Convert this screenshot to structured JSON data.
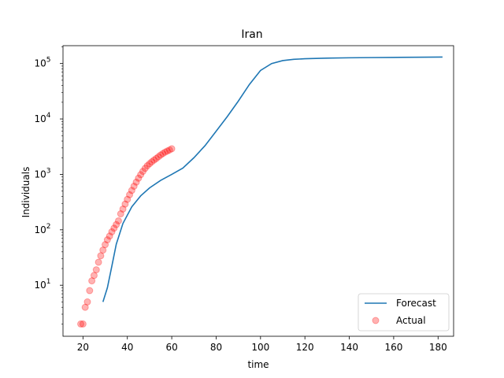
{
  "chart_data": {
    "type": "line",
    "title": "Iran",
    "xlabel": "time",
    "ylabel": "Individuals",
    "xlim": [
      11,
      187
    ],
    "ylim": [
      1.2,
      210000
    ],
    "yscale": "log",
    "grid": false,
    "legend_position": "lower right",
    "x_ticks": [
      20,
      40,
      60,
      80,
      100,
      120,
      140,
      160,
      180
    ],
    "y_ticks": [
      {
        "value": 10,
        "label": "10",
        "exp": "1"
      },
      {
        "value": 100,
        "label": "10",
        "exp": "2"
      },
      {
        "value": 1000,
        "label": "10",
        "exp": "3"
      },
      {
        "value": 10000,
        "label": "10",
        "exp": "4"
      },
      {
        "value": 100000,
        "label": "10",
        "exp": "5"
      }
    ],
    "series": [
      {
        "name": "Forecast",
        "kind": "line",
        "color": "#1f77b4",
        "x": [
          29,
          31,
          33,
          35,
          38,
          42,
          46,
          50,
          55,
          60,
          65,
          70,
          75,
          80,
          85,
          90,
          95,
          100,
          105,
          110,
          115,
          120,
          130,
          140,
          150,
          160,
          170,
          182
        ],
        "y": [
          5,
          9,
          22,
          55,
          130,
          260,
          410,
          570,
          780,
          1000,
          1300,
          2000,
          3300,
          6000,
          11000,
          21000,
          42000,
          75000,
          100000,
          113000,
          119000,
          122000,
          125000,
          127000,
          128000,
          129000,
          130000,
          131000
        ]
      },
      {
        "name": "Actual",
        "kind": "scatter",
        "color": "#ff0000",
        "x": [
          19,
          20,
          21,
          22,
          23,
          24,
          25,
          26,
          27,
          28,
          29,
          30,
          31,
          32,
          33,
          34,
          35,
          36,
          37,
          38,
          39,
          40,
          41,
          42,
          43,
          44,
          45,
          46,
          47,
          48,
          49,
          50,
          51,
          52,
          53,
          54,
          55,
          56,
          57,
          58,
          59,
          60
        ],
        "y": [
          2,
          2,
          4,
          5,
          8,
          12,
          15,
          19,
          26,
          34,
          43,
          54,
          66,
          77,
          92,
          107,
          124,
          145,
          194,
          237,
          291,
          354,
          429,
          514,
          611,
          724,
          853,
          988,
          1135,
          1284,
          1433,
          1556,
          1685,
          1812,
          1934,
          2077,
          2234,
          2378,
          2517,
          2640,
          2757,
          2898
        ]
      }
    ]
  }
}
